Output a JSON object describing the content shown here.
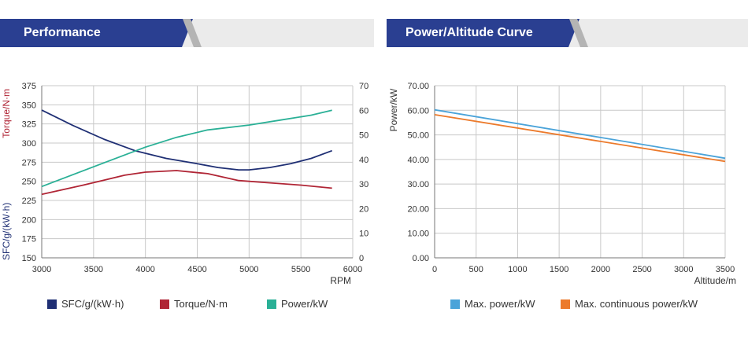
{
  "headers": {
    "left": "Performance",
    "right": "Power/Altitude Curve"
  },
  "colors": {
    "header_blue": "#2a3f91",
    "sfc": "#1f2f74",
    "torque": "#b02535",
    "power": "#2ab096",
    "max_power": "#4aa3d9",
    "max_cont": "#ec7a2b"
  },
  "legends": {
    "left": [
      "SFC/g/(kW·h)",
      "Torque/N·m",
      "Power/kW"
    ],
    "right": [
      "Max. power/kW",
      "Max. continuous power/kW"
    ]
  },
  "chart_data": [
    {
      "type": "line",
      "title": "",
      "xlabel": "RPM",
      "xlim": [
        3000,
        6000
      ],
      "x_ticks": [
        "3000",
        "3500",
        "4000",
        "4500",
        "5000",
        "5500",
        "6000"
      ],
      "ylabel_left_top": "Torque/N·m",
      "ylabel_left_bottom": "SFC/g/(kW·h)",
      "ylabel_right": "Power/kW",
      "ylim_left": [
        150,
        375
      ],
      "ylim_right": [
        0,
        70
      ],
      "y_left_ticks": [
        "375",
        "350",
        "325",
        "300",
        "275",
        "250",
        "225",
        "200",
        "175",
        "150"
      ],
      "y_right_ticks": [
        "70",
        "60",
        "50",
        "40",
        "30",
        "20",
        "10",
        "0"
      ],
      "grid": true,
      "legend_position": "bottom",
      "series": [
        {
          "name": "SFC/g/(kW·h)",
          "axis": "left",
          "x": [
            3000,
            3300,
            3600,
            3900,
            4200,
            4500,
            4700,
            4900,
            5000,
            5200,
            5400,
            5600,
            5800
          ],
          "y": [
            343,
            323,
            305,
            290,
            280,
            273,
            268,
            265,
            265,
            268,
            273,
            280,
            290
          ]
        },
        {
          "name": "Torque/N·m",
          "axis": "left",
          "x": [
            3000,
            3400,
            3800,
            4000,
            4300,
            4600,
            4900,
            5200,
            5500,
            5800
          ],
          "y": [
            233,
            245,
            258,
            262,
            264,
            260,
            251,
            248,
            245,
            241
          ]
        },
        {
          "name": "Power/kW",
          "axis": "right",
          "x": [
            3000,
            3500,
            4000,
            4300,
            4600,
            5000,
            5300,
            5600,
            5800
          ],
          "y": [
            29,
            37,
            45,
            49,
            52,
            54,
            56,
            58,
            60
          ]
        }
      ]
    },
    {
      "type": "line",
      "title": "",
      "xlabel": "Altitude/m",
      "ylabel": "Power/kW",
      "xlim": [
        0,
        3500
      ],
      "ylim": [
        0,
        70
      ],
      "x_ticks": [
        "0",
        "500",
        "1000",
        "1500",
        "2000",
        "2500",
        "3000",
        "3500"
      ],
      "y_ticks": [
        "70.00",
        "60.00",
        "50.00",
        "40.00",
        "30.00",
        "20.00",
        "10.00",
        "0.00"
      ],
      "grid": true,
      "legend_position": "bottom",
      "series": [
        {
          "name": "Max. power/kW",
          "x": [
            0,
            3500
          ],
          "y": [
            60.2,
            40.5
          ]
        },
        {
          "name": "Max. continuous power/kW",
          "x": [
            0,
            3500
          ],
          "y": [
            58.2,
            39.2
          ]
        }
      ]
    }
  ]
}
